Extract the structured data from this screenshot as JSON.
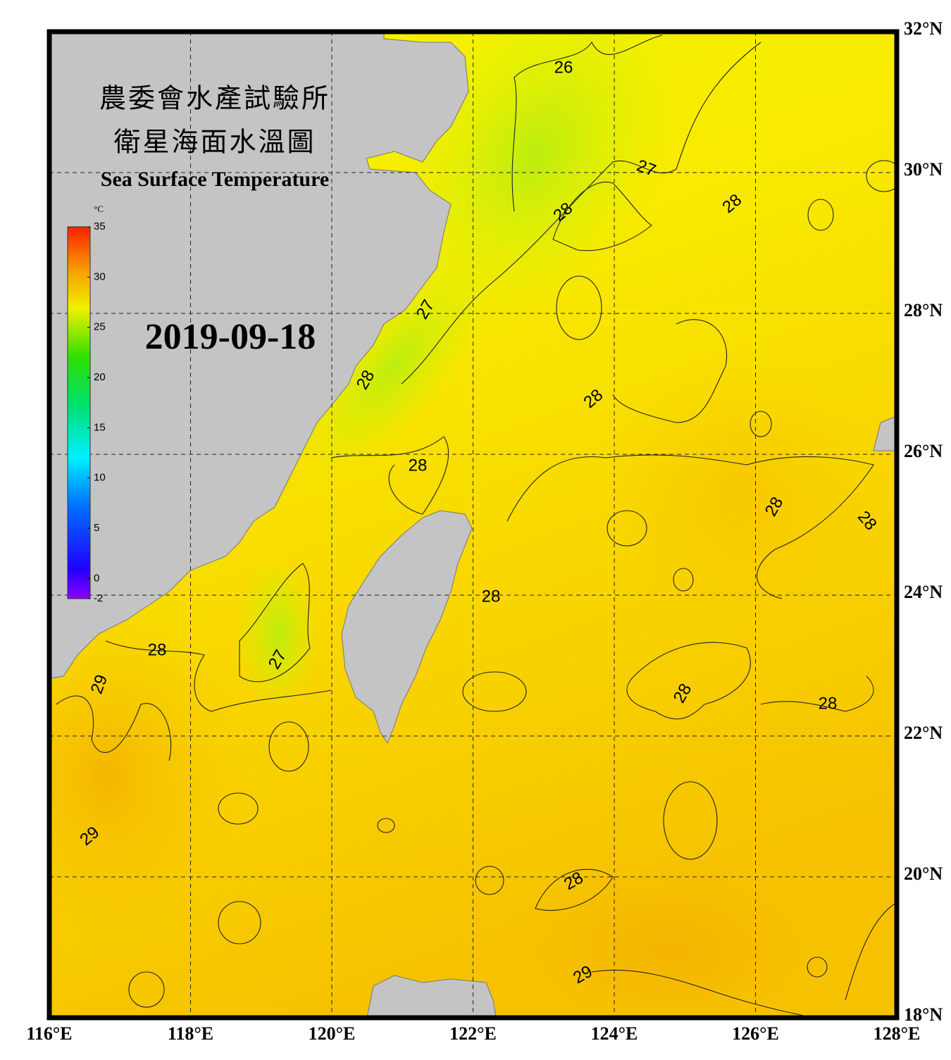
{
  "header": {
    "title_zh": [
      "農委會水產試驗所",
      "衛星海面水溫圖"
    ],
    "title_en": "Sea Surface Temperature",
    "date": "2019-09-18"
  },
  "colorbar": {
    "unit": "°C",
    "range": [
      -2,
      35
    ],
    "ticks": [
      35,
      30,
      25,
      20,
      15,
      10,
      5,
      0,
      -2
    ]
  },
  "map": {
    "lon_range": [
      116,
      128
    ],
    "lat_range": [
      18,
      32
    ],
    "lon_ticks": [
      {
        "value": 116,
        "label": "116°E"
      },
      {
        "value": 118,
        "label": "118°E"
      },
      {
        "value": 120,
        "label": "120°E"
      },
      {
        "value": 122,
        "label": "122°E"
      },
      {
        "value": 124,
        "label": "124°E"
      },
      {
        "value": 126,
        "label": "126°E"
      },
      {
        "value": 128,
        "label": "128°E"
      }
    ],
    "lat_ticks": [
      {
        "value": 18,
        "label": "18°N"
      },
      {
        "value": 20,
        "label": "20°N"
      },
      {
        "value": 22,
        "label": "22°N"
      },
      {
        "value": 24,
        "label": "24°N"
      },
      {
        "value": 26,
        "label": "26°N"
      },
      {
        "value": 28,
        "label": "28°N"
      },
      {
        "value": 30,
        "label": "30°N"
      },
      {
        "value": 32,
        "label": "32°N"
      }
    ],
    "contour_labels": [
      26,
      27,
      28,
      28,
      27,
      28,
      28,
      28,
      28,
      28,
      28,
      28,
      27,
      29,
      28,
      28,
      29,
      28,
      29
    ]
  }
}
